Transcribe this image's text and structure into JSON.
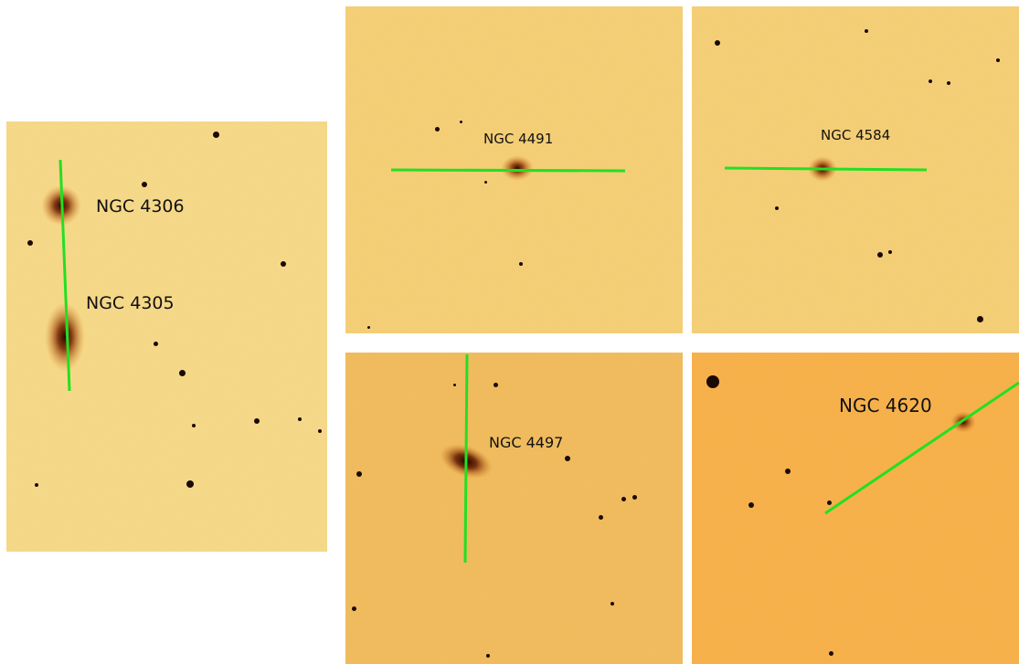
{
  "panels": [
    {
      "id": "ngc4306-4305",
      "labels": [
        "NGC 4306",
        "NGC 4305"
      ]
    },
    {
      "id": "ngc4491",
      "labels": [
        "NGC 4491"
      ]
    },
    {
      "id": "ngc4584",
      "labels": [
        "NGC 4584"
      ]
    },
    {
      "id": "ngc4497",
      "labels": [
        "NGC 4497"
      ]
    },
    {
      "id": "ngc4620",
      "labels": [
        "NGC 4620"
      ]
    }
  ],
  "colors": {
    "sky_light": "#f5d98a",
    "sky_mid": "#f0c063",
    "sky_orange": "#f5b045",
    "slit_line": "#22e022",
    "star": "#1a0a05"
  }
}
